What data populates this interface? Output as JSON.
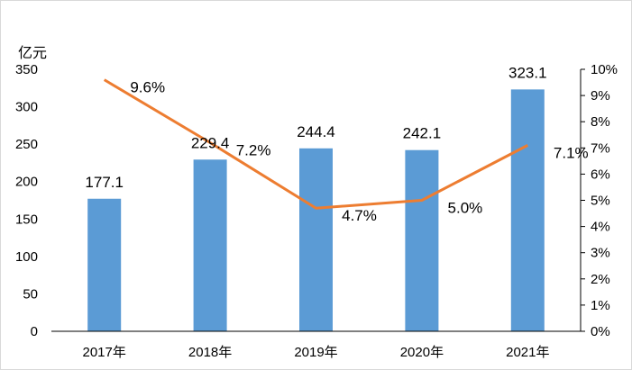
{
  "chart_data": {
    "type": "bar",
    "categories": [
      "2017年",
      "2018年",
      "2019年",
      "2020年",
      "2021年"
    ],
    "series": [
      {
        "type": "bar",
        "axis": "left",
        "values": [
          177.1,
          229.4,
          244.4,
          242.1,
          323.1
        ],
        "labels": [
          "177.1",
          "229.4",
          "244.4",
          "242.1",
          "323.1"
        ],
        "color": "#5B9BD5"
      },
      {
        "type": "line",
        "axis": "right",
        "values": [
          9.6,
          7.2,
          4.7,
          5.0,
          7.1
        ],
        "labels": [
          "9.6%",
          "7.2%",
          "4.7%",
          "5.0%",
          "7.1%"
        ],
        "color": "#ED7D31"
      }
    ],
    "y_unit": "亿元",
    "y_left": {
      "min": 0,
      "max": 350,
      "ticks": [
        "0",
        "50",
        "100",
        "150",
        "200",
        "250",
        "300",
        "350"
      ]
    },
    "y_right": {
      "min": 0,
      "max": 10,
      "ticks": [
        "0%",
        "1%",
        "2%",
        "3%",
        "4%",
        "5%",
        "6%",
        "7%",
        "8%",
        "9%",
        "10%"
      ]
    },
    "grid": false,
    "legend": "none"
  }
}
